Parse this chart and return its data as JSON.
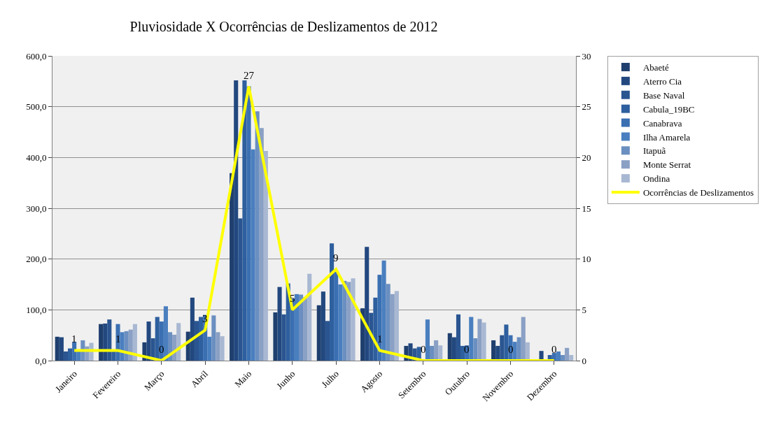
{
  "chart_data": {
    "type": "bar",
    "title": "Pluviosidade X Ocorrências de Deslizamentos de 2012",
    "categories": [
      "Janeiro",
      "Fevereiro",
      "Março",
      "Abril",
      "Maio",
      "Junho",
      "Julho",
      "Agosto",
      "Setembro",
      "Outubro",
      "Novembro",
      "Dezembro"
    ],
    "series": [
      {
        "name": "Abaeté",
        "color": "#1f3f6e",
        "values": [
          47,
          72,
          36,
          57,
          369,
          95,
          109,
          103,
          29,
          54,
          40,
          null
        ]
      },
      {
        "name": "Aterro Cia",
        "color": "#22487f",
        "values": [
          46,
          73,
          77,
          124,
          552,
          145,
          136,
          224,
          34,
          46,
          29,
          19
        ]
      },
      {
        "name": "Base Naval",
        "color": "#2a5590",
        "values": [
          18,
          81,
          44,
          78,
          280,
          91,
          78,
          94,
          24,
          91,
          50,
          0
        ]
      },
      {
        "name": "Cabula_19BC",
        "color": "#2e5f9e",
        "values": [
          24,
          20,
          86,
          86,
          552,
          152,
          231,
          124,
          27,
          29,
          71,
          11
        ]
      },
      {
        "name": "Canabrava",
        "color": "#3a6fb2",
        "values": [
          37,
          72,
          77,
          90,
          540,
          122,
          175,
          169,
          null,
          30,
          50,
          15
        ]
      },
      {
        "name": "Ilha Amarela",
        "color": "#4a7fbf",
        "values": [
          20,
          56,
          107,
          47,
          416,
          131,
          150,
          197,
          81,
          86,
          37,
          18
        ]
      },
      {
        "name": "Itapuã",
        "color": "#6a8fc0",
        "values": [
          40,
          58,
          56,
          89,
          491,
          130,
          157,
          151,
          29,
          44,
          46,
          11
        ]
      },
      {
        "name": "Monte Serrat",
        "color": "#8aa0c4",
        "values": [
          28,
          61,
          51,
          56,
          458,
          125,
          155,
          131,
          40,
          82,
          86,
          25
        ]
      },
      {
        "name": "Ondina",
        "color": "#a9b8d2",
        "values": [
          35,
          72,
          74,
          48,
          413,
          171,
          162,
          137,
          30,
          75,
          36,
          11
        ]
      },
      {
        "name": "Ocorrências de Deslizamentos",
        "type": "line",
        "axis": "y2",
        "color": "#ffff00",
        "data_labels": true,
        "values": [
          1,
          1,
          0,
          3,
          27,
          5,
          9,
          1,
          0,
          0,
          0,
          0
        ]
      }
    ],
    "ylim": [
      0,
      600
    ],
    "yticks": [
      {
        "value": 0,
        "label": "0,0"
      },
      {
        "value": 100,
        "label": "100,0"
      },
      {
        "value": 200,
        "label": "200,0"
      },
      {
        "value": 300,
        "label": "300,0"
      },
      {
        "value": 400,
        "label": "400,0"
      },
      {
        "value": 500,
        "label": "500,0"
      },
      {
        "value": 600,
        "label": "600,0"
      }
    ],
    "y2lim": [
      0,
      30
    ],
    "y2ticks": [
      0,
      5,
      10,
      15,
      20,
      25,
      30
    ],
    "grid": "y",
    "legend": "right",
    "marker": "none"
  }
}
